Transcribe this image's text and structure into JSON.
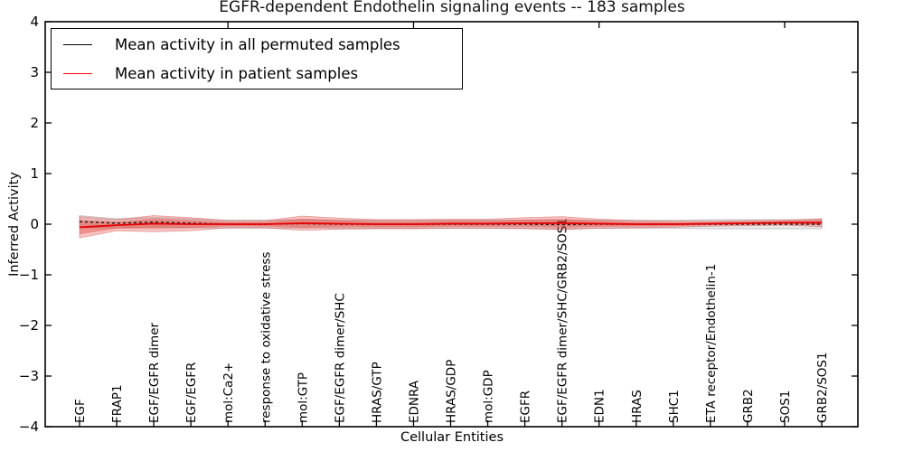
{
  "title": "EGFR-dependent Endothelin signaling events -- 183 samples",
  "axes": {
    "xlabel": "Cellular Entities",
    "ylabel": "Inferred Activity",
    "ytick_values": [
      4,
      3,
      2,
      1,
      0,
      -1,
      -2,
      -3,
      -4
    ],
    "ytick_labels": [
      "4",
      "3",
      "2",
      "1",
      "0",
      "−1",
      "−2",
      "−3",
      "−4"
    ]
  },
  "legend": {
    "items": [
      {
        "label": "Mean activity in all permuted samples",
        "color": "#000000"
      },
      {
        "label": "Mean activity in patient samples",
        "color": "#ff0000"
      }
    ]
  },
  "chart_data": {
    "type": "line",
    "title": "EGFR-dependent Endothelin signaling events -- 183 samples",
    "xlabel": "Cellular Entities",
    "ylabel": "Inferred Activity",
    "ylim": [
      -4,
      4
    ],
    "grid": false,
    "legend_position": "upper left",
    "categories": [
      "EGF",
      "FRAP1",
      "EGF/EGFR dimer",
      "EGF/EGFR",
      "mol:Ca2+",
      "response to oxidative stress",
      "mol:GTP",
      "EGF/EGFR dimer/SHC",
      "HRAS/GTP",
      "EDNRA",
      "HRAS/GDP",
      "mol:GDP",
      "EGFR",
      "EGF/EGFR dimer/SHC/GRB2/SOS1",
      "EDN1",
      "HRAS",
      "SHC1",
      "ETA receptor/Endothelin-1",
      "GRB2",
      "SOS1",
      "GRB2/SOS1"
    ],
    "series": [
      {
        "name": "Mean activity in all permuted samples",
        "color": "#1a1a1a",
        "style": "dashed",
        "values": [
          0.05,
          0.02,
          0.04,
          0.02,
          0.0,
          0.0,
          0.01,
          0.0,
          0.0,
          0.0,
          0.0,
          0.0,
          0.0,
          -0.01,
          0.0,
          0.0,
          0.0,
          0.0,
          0.0,
          0.0,
          0.0
        ]
      },
      {
        "name": "Mean activity in patient samples",
        "color": "#e60000",
        "style": "solid",
        "values": [
          -0.06,
          -0.02,
          0.01,
          0.0,
          0.0,
          0.0,
          0.02,
          0.01,
          0.0,
          0.0,
          0.01,
          0.01,
          0.02,
          0.02,
          0.01,
          0.0,
          0.0,
          0.01,
          0.02,
          0.03,
          0.03
        ]
      }
    ],
    "bands": [
      {
        "name": "permuted-std-band",
        "center_series": 0,
        "fill": "rgba(128,128,128,0.17)",
        "edge": "rgba(90,90,90,0.35)",
        "halfwidths": [
          0.12,
          0.09,
          0.09,
          0.085,
          0.08,
          0.08,
          0.08,
          0.08,
          0.08,
          0.08,
          0.08,
          0.08,
          0.08,
          0.08,
          0.08,
          0.08,
          0.08,
          0.09,
          0.09,
          0.09,
          0.09
        ]
      },
      {
        "name": "patient-std-outer-band",
        "center_series": 1,
        "fill": "rgba(222,45,38,0.28)",
        "edge": "rgba(210,60,60,0.45)",
        "halfwidths": [
          0.21,
          0.11,
          0.16,
          0.13,
          0.07,
          0.07,
          0.14,
          0.11,
          0.09,
          0.09,
          0.09,
          0.09,
          0.11,
          0.13,
          0.09,
          0.07,
          0.06,
          0.05,
          0.05,
          0.05,
          0.08
        ]
      },
      {
        "name": "patient-std-inner-band",
        "center_series": 1,
        "fill": "rgba(222,45,38,0.34)",
        "edge": "none",
        "halfwidths": [
          0.14,
          0.07,
          0.1,
          0.08,
          0.045,
          0.045,
          0.09,
          0.07,
          0.06,
          0.06,
          0.06,
          0.06,
          0.07,
          0.085,
          0.06,
          0.045,
          0.04,
          0.03,
          0.03,
          0.03,
          0.05
        ]
      }
    ],
    "top_tick_indices": [
      4,
      9,
      14,
      19
    ]
  }
}
